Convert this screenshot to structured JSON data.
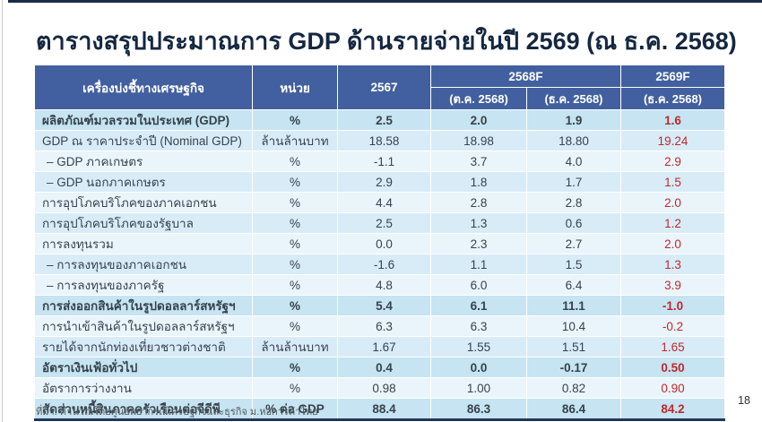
{
  "page": {
    "title": "ตารางสรุปประมาณการ GDP ด้านรายจ่ายในปี 2569 (ณ ธ.ค. 2568)",
    "source_note": "ที่มา: คำนวณโดยศูนย์พยากรณ์เศรษฐกิจและธุรกิจ ม.หอการค้าไทย",
    "page_number": "18"
  },
  "colors": {
    "header_bg": "#42609f",
    "row_strong": "#c6e4f1",
    "row_mid": "#d8ecf7",
    "row_light": "#e9f5fb",
    "accent_red": "#c0272d",
    "accent_red_bold": "#b62025",
    "title_text": "#152740",
    "body_text": "#37424e",
    "bold_text": "#14263e",
    "top_bar": "#1b2b49"
  },
  "table": {
    "headers": {
      "indicator": "เครื่องบ่งชี้ทางเศรษฐกิจ",
      "unit": "หน่วย",
      "y2567": "2567",
      "y2568f": "2568F",
      "y2568f_oct": "(ต.ค. 2568)",
      "y2568f_dec": "(ธ.ค. 2568)",
      "y2569f": "2569F",
      "y2569f_dec": "(ธ.ค. 2568)"
    },
    "rows": [
      {
        "indicator": "ผลิตภัณฑ์มวลรวมในประเทศ (GDP)",
        "unit": "%",
        "y2567": "2.5",
        "oct2568": "2.0",
        "dec2568": "1.9",
        "dec2569": "1.6",
        "bold": true,
        "indent": false,
        "variant": "strong"
      },
      {
        "indicator": "GDP ณ ราคาประจำปี (Nominal GDP)",
        "unit": "ล้านล้านบาท",
        "y2567": "18.58",
        "oct2568": "18.98",
        "dec2568": "18.80",
        "dec2569": "19.24",
        "bold": false,
        "indent": false,
        "variant": "mid"
      },
      {
        "indicator": "– GDP ภาคเกษตร",
        "unit": "%",
        "y2567": "-1.1",
        "oct2568": "3.7",
        "dec2568": "4.0",
        "dec2569": "2.9",
        "bold": false,
        "indent": true,
        "variant": "light"
      },
      {
        "indicator": "– GDP นอกภาคเกษตร",
        "unit": "%",
        "y2567": "2.9",
        "oct2568": "1.8",
        "dec2568": "1.7",
        "dec2569": "1.5",
        "bold": false,
        "indent": true,
        "variant": "mid"
      },
      {
        "indicator": "การอุปโภคบริโภคของภาคเอกชน",
        "unit": "%",
        "y2567": "4.4",
        "oct2568": "2.8",
        "dec2568": "2.8",
        "dec2569": "2.0",
        "bold": false,
        "indent": false,
        "variant": "light"
      },
      {
        "indicator": "การอุปโภคบริโภคของรัฐบาล",
        "unit": "%",
        "y2567": "2.5",
        "oct2568": "1.3",
        "dec2568": "0.6",
        "dec2569": "1.2",
        "bold": false,
        "indent": false,
        "variant": "mid"
      },
      {
        "indicator": "การลงทุนรวม",
        "unit": "%",
        "y2567": "0.0",
        "oct2568": "2.3",
        "dec2568": "2.7",
        "dec2569": "2.0",
        "bold": false,
        "indent": false,
        "variant": "light"
      },
      {
        "indicator": "– การลงทุนของภาคเอกชน",
        "unit": "%",
        "y2567": "-1.6",
        "oct2568": "1.1",
        "dec2568": "1.5",
        "dec2569": "1.3",
        "bold": false,
        "indent": true,
        "variant": "mid"
      },
      {
        "indicator": "– การลงทุนของภาครัฐ",
        "unit": "%",
        "y2567": "4.8",
        "oct2568": "6.0",
        "dec2568": "6.4",
        "dec2569": "3.9",
        "bold": false,
        "indent": true,
        "variant": "light"
      },
      {
        "indicator": "การส่งออกสินค้าในรูปดอลลาร์สหรัฐฯ",
        "unit": "%",
        "y2567": "5.4",
        "oct2568": "6.1",
        "dec2568": "11.1",
        "dec2569": "-1.0",
        "bold": true,
        "indent": false,
        "variant": "strong"
      },
      {
        "indicator": "การนำเข้าสินค้าในรูปดอลลาร์สหรัฐฯ",
        "unit": "%",
        "y2567": "6.3",
        "oct2568": "6.3",
        "dec2568": "10.4",
        "dec2569": "-0.2",
        "bold": false,
        "indent": false,
        "variant": "light"
      },
      {
        "indicator": "รายได้จากนักท่องเที่ยวชาวต่างชาติ",
        "unit": "ล้านล้านบาท",
        "y2567": "1.67",
        "oct2568": "1.55",
        "dec2568": "1.51",
        "dec2569": "1.65",
        "bold": false,
        "indent": false,
        "variant": "mid"
      },
      {
        "indicator": "อัตราเงินเฟ้อทั่วไป",
        "unit": "%",
        "y2567": "0.4",
        "oct2568": "0.0",
        "dec2568": "-0.17",
        "dec2569": "0.50",
        "bold": true,
        "indent": false,
        "variant": "strong"
      },
      {
        "indicator": "อัตราการว่างงาน",
        "unit": "%",
        "y2567": "0.98",
        "oct2568": "1.00",
        "dec2568": "0.82",
        "dec2569": "0.90",
        "bold": false,
        "indent": false,
        "variant": "light"
      },
      {
        "indicator": "สัดส่วนหนี้สินภาคครัวเรือนต่อจีดีพี",
        "unit": "% ต่อ GDP",
        "y2567": "88.4",
        "oct2568": "86.3",
        "dec2568": "86.4",
        "dec2569": "84.2",
        "bold": true,
        "indent": false,
        "variant": "strong"
      }
    ]
  }
}
